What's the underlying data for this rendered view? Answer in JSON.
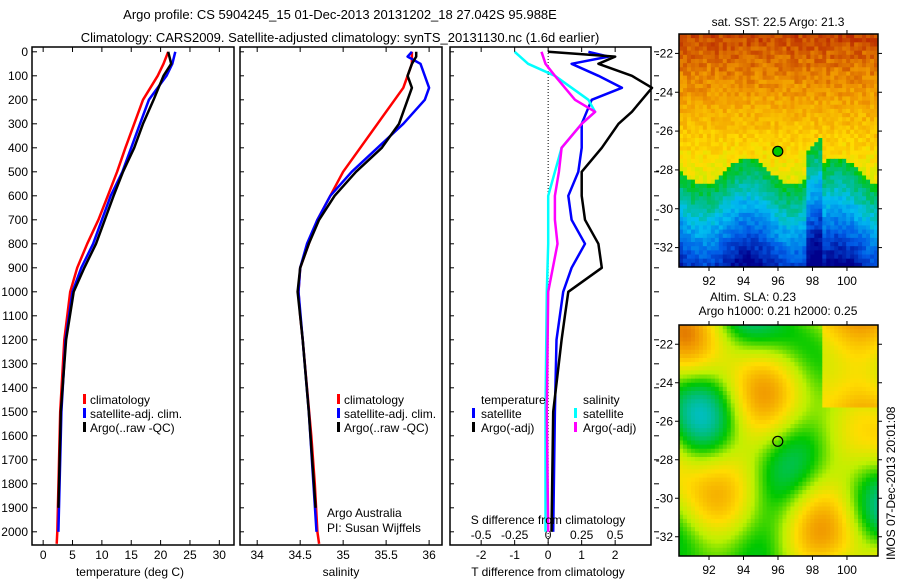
{
  "title_line1": "Argo profile: CS 5904245_15 01-Dec-2013 20131202_18 27.042S 95.988E",
  "title_line2": "Climatology: CARS2009. Satellite-adjusted climatology: synTS_20131130.nc (1.6d earlier)",
  "colors": {
    "climatology": "#ff0000",
    "satellite": "#0000ff",
    "argo": "#000000",
    "sal_satellite": "#00ffff",
    "sal_argo": "#ff00ff"
  },
  "depth_axis": {
    "ticks": [
      0,
      100,
      200,
      300,
      400,
      500,
      600,
      700,
      800,
      900,
      1000,
      1100,
      1200,
      1300,
      1400,
      1500,
      1600,
      1700,
      1800,
      1900,
      2000
    ],
    "ylim": [
      -20,
      2055
    ]
  },
  "chart_data": [
    {
      "type": "line",
      "id": "temperature",
      "xlabel": "temperature (deg C)",
      "xlim": [
        -1.9,
        32.5
      ],
      "xticks": [
        0,
        5,
        10,
        15,
        20,
        25,
        30
      ],
      "legend": [
        "climatology",
        "satellite-adj. clim.",
        "Argo(..raw -QC)"
      ],
      "legend_placement": "lower-left",
      "series": [
        {
          "name": "climatology",
          "color": "#ff0000",
          "depth": [
            0,
            50,
            100,
            200,
            300,
            400,
            500,
            600,
            700,
            800,
            900,
            1000,
            1200,
            1500,
            2000,
            2050
          ],
          "values": [
            21.3,
            20.5,
            19.5,
            17,
            15.5,
            14,
            12.6,
            11,
            9.4,
            7.5,
            5.8,
            4.6,
            3.6,
            2.9,
            2.4,
            2.3
          ]
        },
        {
          "name": "satellite-adj. clim.",
          "color": "#0000ff",
          "depth": [
            0,
            50,
            100,
            200,
            300,
            400,
            500,
            600,
            700,
            800,
            900,
            1000,
            1200,
            1500,
            2000
          ],
          "values": [
            22.5,
            22,
            21,
            18,
            16.5,
            15,
            13.5,
            11.5,
            10,
            8.5,
            6.5,
            5,
            3.8,
            3.1,
            2.6
          ]
        },
        {
          "name": "Argo(..raw -QC)",
          "color": "#000000",
          "depth": [
            0,
            20,
            50,
            100,
            200,
            300,
            400,
            500,
            600,
            700,
            800,
            900,
            1000,
            1200,
            1500,
            1900
          ],
          "values": [
            21.3,
            21.5,
            21.8,
            20.5,
            18.8,
            17,
            15.5,
            13.6,
            12,
            10.5,
            9,
            7,
            5.2,
            3.9,
            3.0,
            2.6
          ]
        }
      ]
    },
    {
      "type": "line",
      "id": "salinity",
      "xlabel": "salinity",
      "xlim": [
        33.8,
        36.15
      ],
      "xticks": [
        34,
        34.5,
        35,
        35.5,
        36
      ],
      "legend": [
        "climatology",
        "satellite-adj. clim.",
        "Argo(..raw -QC)"
      ],
      "legend_placement": "lower-right",
      "annotation": [
        "Argo Australia",
        "PI: Susan Wijffels"
      ],
      "series": [
        {
          "name": "climatology",
          "color": "#ff0000",
          "depth": [
            0,
            50,
            100,
            150,
            200,
            300,
            400,
            500,
            600,
            700,
            800,
            900,
            1000,
            1100,
            1200,
            1400,
            1600,
            1800,
            2000,
            2050
          ],
          "values": [
            35.8,
            35.8,
            35.75,
            35.7,
            35.6,
            35.4,
            35.2,
            35.0,
            34.85,
            34.7,
            34.6,
            34.5,
            34.48,
            34.5,
            34.53,
            34.58,
            34.63,
            34.67,
            34.7,
            34.72
          ]
        },
        {
          "name": "satellite-adj. clim.",
          "color": "#0000ff",
          "depth": [
            0,
            20,
            50,
            100,
            150,
            200,
            300,
            400,
            500,
            600,
            700,
            800,
            900,
            1000,
            1200,
            1500,
            2000
          ],
          "values": [
            35.8,
            35.75,
            35.9,
            35.95,
            36.0,
            35.95,
            35.7,
            35.4,
            35.1,
            34.85,
            34.7,
            34.58,
            34.5,
            34.48,
            34.53,
            34.6,
            34.69
          ]
        },
        {
          "name": "Argo(..raw -QC)",
          "color": "#000000",
          "depth": [
            0,
            20,
            50,
            100,
            150,
            200,
            300,
            400,
            500,
            600,
            700,
            800,
            900,
            1000,
            1200,
            1500,
            1900
          ],
          "values": [
            35.85,
            35.85,
            35.8,
            35.75,
            35.8,
            35.75,
            35.65,
            35.45,
            35.15,
            34.9,
            34.72,
            34.6,
            34.5,
            34.47,
            34.53,
            34.6,
            34.68
          ]
        }
      ]
    },
    {
      "type": "line",
      "id": "differences",
      "xlabel": "T difference from climatology",
      "xlim": [
        -2.93,
        3.07
      ],
      "xticks": [
        -2,
        -1,
        0,
        1,
        2
      ],
      "x2label": "S difference from climatology",
      "x2ticks": [
        -0.5,
        -0.25,
        0,
        0.25,
        0.5
      ],
      "x2_scale": "S = T/4",
      "legend_temperature": {
        "title": "temperature",
        "items": [
          "satellite",
          "Argo(-adj)"
        ]
      },
      "legend_salinity": {
        "title": "salinity",
        "items": [
          "satellite",
          "Argo(-adj)"
        ]
      },
      "series": [
        {
          "name": "temperature satellite",
          "axis": "T",
          "color": "#0000ff",
          "depth": [
            0,
            20,
            50,
            100,
            150,
            200,
            300,
            400,
            500,
            600,
            700,
            800,
            900,
            1000,
            1200,
            1500,
            2000
          ],
          "values": [
            1.2,
            1.8,
            0.7,
            1.5,
            2.2,
            1.3,
            1.0,
            1.0,
            0.9,
            0.6,
            0.7,
            1.1,
            0.7,
            0.45,
            0.25,
            0.2,
            0.15
          ]
        },
        {
          "name": "temperature Argo(-adj)",
          "axis": "T",
          "color": "#000000",
          "depth": [
            0,
            20,
            50,
            100,
            150,
            250,
            300,
            400,
            500,
            600,
            700,
            800,
            900,
            1000,
            1100,
            1200,
            1500,
            2000
          ],
          "values": [
            0,
            2,
            1.5,
            2.5,
            3.1,
            2.5,
            2.1,
            1.6,
            1.0,
            1.0,
            1.1,
            1.5,
            1.6,
            0.6,
            0.5,
            0.4,
            0.15,
            0.1
          ]
        },
        {
          "name": "salinity satellite",
          "axis": "S",
          "color": "#00ffff",
          "depth": [
            0,
            50,
            100,
            200,
            250,
            300,
            400,
            500,
            600,
            800,
            1000,
            1500,
            2000
          ],
          "values": [
            -0.25,
            -0.15,
            0.05,
            0.3,
            0.35,
            0.25,
            0.1,
            0.05,
            0,
            0,
            -0.01,
            -0.02,
            -0.02
          ]
        },
        {
          "name": "salinity Argo(-adj)",
          "axis": "S",
          "color": "#ff00ff",
          "depth": [
            0,
            50,
            100,
            200,
            250,
            300,
            400,
            500,
            600,
            700,
            800,
            1000,
            1500,
            2000
          ],
          "values": [
            -0.05,
            -0.02,
            0.05,
            0.2,
            0.35,
            0.25,
            0.1,
            0.08,
            0.05,
            0.05,
            0.07,
            0,
            -0.01,
            0
          ]
        }
      ]
    },
    {
      "type": "heatmap",
      "id": "sst_map",
      "title": "sat. SST: 22.5 Argo: 21.3",
      "xlim": [
        90.26,
        101.8
      ],
      "ylim": [
        -33,
        -21
      ],
      "xticks": [
        92,
        94,
        96,
        98,
        100
      ],
      "yticks": [
        -22,
        -24,
        -26,
        -28,
        -30,
        -32
      ],
      "marker": {
        "lon": 95.988,
        "lat": -27.042
      }
    },
    {
      "type": "heatmap",
      "id": "sla_map",
      "title_line1": "Altim. SLA: 0.23",
      "title_line2": "Argo h1000: 0.21 h2000: 0.25",
      "xlim": [
        90.26,
        101.8
      ],
      "ylim": [
        -33,
        -21
      ],
      "xticks": [
        92,
        94,
        96,
        98,
        100
      ],
      "yticks": [
        -22,
        -24,
        -26,
        -28,
        -30,
        -32
      ],
      "marker": {
        "lon": 95.988,
        "lat": -27.042
      }
    }
  ],
  "footer_stamp": "IMOS 07-Dec-2013 20:01:08"
}
